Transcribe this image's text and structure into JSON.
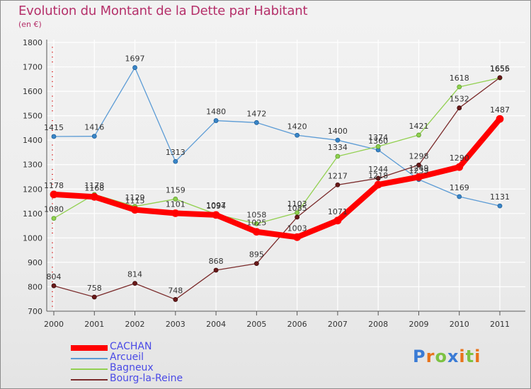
{
  "title": "Evolution du Montant de la Dette par Habitant",
  "subtitle": "(en €)",
  "logo": {
    "text": "Proxiti",
    "letter_colors": [
      "#3a7bd5",
      "#e8731a",
      "#7cc242",
      "#3a7bd5",
      "#e8731a",
      "#7cc242",
      "#e8731a"
    ]
  },
  "colors": {
    "CACHAN": "#ff0000",
    "Arcueil": "#5b9bd5",
    "Bagneux": "#92d050",
    "Bourg-la-Reine": "#7a2a2a"
  },
  "chart_data": {
    "type": "line",
    "title": "Evolution du Montant de la Dette par Habitant",
    "subtitle": "(en €)",
    "x": [
      "2000",
      "2001",
      "2002",
      "2003",
      "2004",
      "2005",
      "2006",
      "2007",
      "2008",
      "2009",
      "2010",
      "2011"
    ],
    "ylim": [
      700,
      1800
    ],
    "y_ticks": [
      700,
      800,
      900,
      1000,
      1100,
      1200,
      1300,
      1400,
      1500,
      1600,
      1700,
      1800
    ],
    "grid": true,
    "legend_position": "bottom-left",
    "series": [
      {
        "name": "CACHAN",
        "values": [
          1178,
          1168,
          1115,
          1101,
          1094,
          1025,
          1003,
          1071,
          1218,
          1249,
          1290,
          1487
        ]
      },
      {
        "name": "Arcueil",
        "values": [
          1415,
          1416,
          1697,
          1313,
          1480,
          1472,
          1420,
          1400,
          1360,
          1239,
          1169,
          1131
        ]
      },
      {
        "name": "Bagneux",
        "values": [
          1080,
          1178,
          1129,
          1159,
          1097,
          1058,
          1103,
          1334,
          1374,
          1421,
          1618,
          1655
        ]
      },
      {
        "name": "Bourg-la-Reine",
        "values": [
          804,
          758,
          814,
          748,
          868,
          895,
          1085,
          1217,
          1244,
          1298,
          1532,
          1656
        ]
      }
    ]
  }
}
